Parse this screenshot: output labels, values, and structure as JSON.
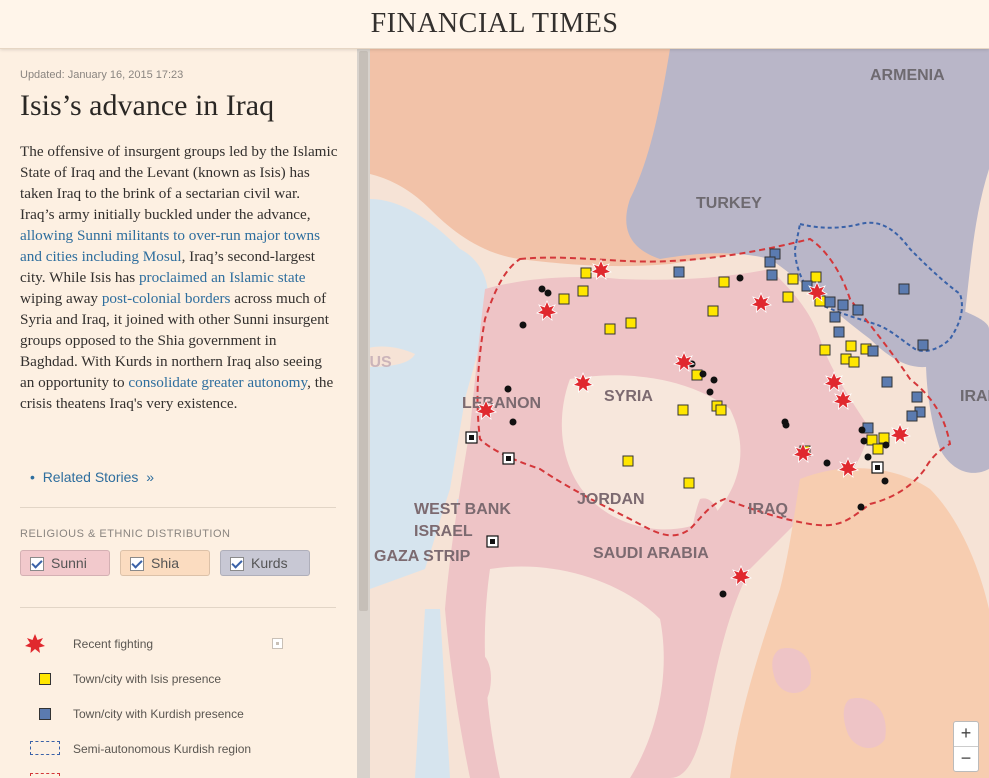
{
  "header": {
    "masthead": "FINANCIAL TIMES"
  },
  "article": {
    "updated": "Updated: January 16, 2015 17:23",
    "title": "Isis’s advance in Iraq",
    "p1": "The offensive of insurgent groups led by the Islamic State of Iraq and the Levant (known as Isis) has taken Iraq to the brink of a sectarian civil war. Iraq’s army initially buckled under the advance, ",
    "link1": "allowing Sunni militants to over-run major towns and cities including Mosul",
    "p2": ", Iraq’s second-largest city. While Isis has ",
    "link2": "proclaimed an Islamic state",
    "p3": " wiping away ",
    "link3": "post-colonial borders",
    "p4": " across much of Syria and Iraq, it joined with other Sunni insurgent groups opposed to the Shia government in Baghdad. With Kurds in northern Iraq also seeing an opportunity to ",
    "link4": "consolidate greater autonomy",
    "p5": ", the crisis theatens Iraq's very existence.",
    "related_bullet": "•",
    "related": "Related Stories",
    "related_arrow": "»"
  },
  "filters": {
    "label": "RELIGIOUS & ETHNIC DISTRIBUTION",
    "items": [
      {
        "label": "Sunni",
        "checked": true,
        "color": "#f2c9cc"
      },
      {
        "label": "Shia",
        "checked": true,
        "color": "#fbdcc0"
      },
      {
        "label": "Kurds",
        "checked": true,
        "color": "#c8c8d4"
      }
    ]
  },
  "legend": {
    "items": [
      {
        "label": "Recent fighting",
        "icon": "fighting-burst-icon"
      },
      {
        "label": "Town/city with Isis presence",
        "icon": "yellow-square-icon"
      },
      {
        "label": "Town/city with Kurdish presence",
        "icon": "blue-square-icon"
      },
      {
        "label": "Semi-autonomous Kurdish region",
        "icon": "dashed-blue-box-icon"
      }
    ]
  },
  "map": {
    "labels": {
      "armenia": "ARMENIA",
      "turkey": "TURKEY",
      "cyprus": "CYPRUS",
      "syria": "SYRIA",
      "lebanon": "LEBANON",
      "iraq": "IRAQ",
      "iran": "IRAN",
      "jordan": "JORDAN",
      "west_bank": "WEST BANK",
      "israel": "ISRAEL",
      "gaza_strip": "GAZA STRIP",
      "saudi_arabia": "SAUDI ARABIA"
    },
    "colors": {
      "sea": "#d6e4ee",
      "land": "#f6e3d6",
      "sunni": "#eec4c6",
      "shia": "#f7cdb0",
      "kurds": "#b9b6c8",
      "isis_yellow": "#ffe600",
      "kurd_blue": "#5b7bb0",
      "fighting_red": "#e0282e",
      "border_dashed": "#d4373a"
    },
    "zoom_in": "+",
    "zoom_out": "−"
  }
}
